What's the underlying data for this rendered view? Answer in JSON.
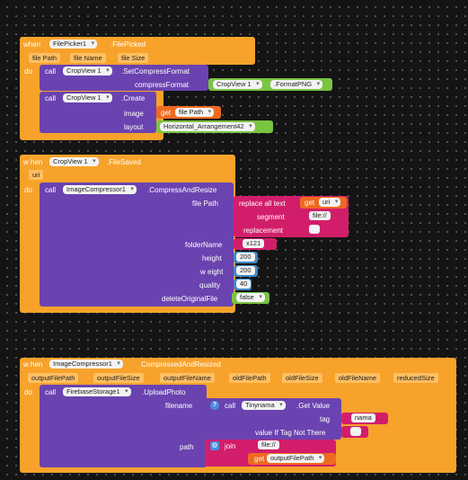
{
  "blocks": {
    "b1": {
      "when": "when",
      "component": "FilePicker1",
      "event": ".FilePicked",
      "params": [
        "file Path",
        "file Name",
        "file Size"
      ],
      "do": "do",
      "call": "call",
      "c1_component": "CropView 1",
      "c1_method": ".SetCompressFormat",
      "c1_arg": "compressFormat",
      "c1_value_component": "CropView 1",
      "c1_value_prop": ".FormatPNG",
      "c2_component": "CropView 1",
      "c2_method": ".Create",
      "c2_arg_image": "image",
      "c2_get": "get",
      "c2_get_var": "file Path",
      "c2_arg_layout": "layout",
      "c2_layout_value": "Horizontal_Arrangement42"
    },
    "b2": {
      "when": "w hen",
      "component": "CropView 1",
      "event": ".FileSaved",
      "param": "uri",
      "do": "do",
      "call": "call",
      "component2": "ImageCompressor1",
      "method": ".CompressAndResize",
      "arg_filepath": "file Path",
      "replace": "replace all text",
      "get": "get",
      "get_var": "uri",
      "segment": "segment",
      "segment_value": "file://",
      "replacement": "replacement",
      "replacement_value": "",
      "arg_folder": "folderName",
      "folder_value": "x121",
      "arg_height": "height",
      "height_value": "200",
      "arg_weight": "w eight",
      "weight_value": "200",
      "arg_quality": "quality",
      "quality_value": "40",
      "arg_delete": "deleteOriginalFile",
      "delete_value": "false"
    },
    "b3": {
      "when": "w hen",
      "component": "ImageCompressor1",
      "event": ".CompressedAndResized",
      "params": [
        "outputFilePath",
        "outputFileSize",
        "outputFileName",
        "oldFilePath",
        "oldFileSize",
        "oldFileName",
        "reducedSize"
      ],
      "do": "do",
      "call": "call",
      "component2": "FirebaseStorage1",
      "method": ".UploadPhoto",
      "arg_filename": "filename",
      "inner_call": "call",
      "inner_component": "Tinynama",
      "inner_method": ".Get Value",
      "arg_tag": "tag",
      "tag_value": "nama",
      "arg_notthere": "value If Tag Not There",
      "notthere_value": "",
      "arg_path": "path",
      "join": "join",
      "join_value1": "file://",
      "get": "get",
      "get_var": "outputFilePath"
    }
  },
  "colors": {
    "event": "#f7a22b",
    "procedure": "#6a43b0",
    "text": "#d21e6a",
    "math": "#3f88c6",
    "logic": "#7ac442",
    "variable": "#ef6a21"
  }
}
